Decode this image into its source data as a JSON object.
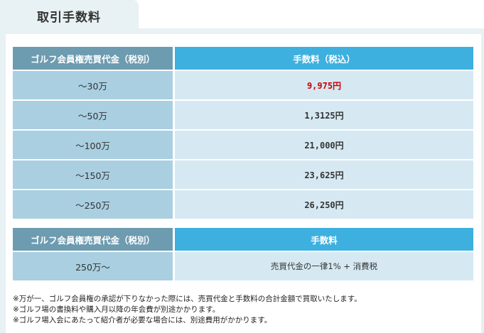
{
  "title": "取引手数料",
  "table1": {
    "headers": [
      "ゴルフ会員権売買代金（税別）",
      "手数料（税込）"
    ],
    "rows": [
      {
        "range": "～30万",
        "fee": "9,975円"
      },
      {
        "range": "～50万",
        "fee": "1,3125円"
      },
      {
        "range": "～100万",
        "fee": "21,000円"
      },
      {
        "range": "～150万",
        "fee": "23,625円"
      },
      {
        "range": "～250万",
        "fee": "26,250円"
      }
    ],
    "highlight_color": "#cc0000"
  },
  "table2": {
    "headers": [
      "ゴルフ会員権売買代金（税別）",
      "手数料"
    ],
    "rows": [
      {
        "range": "250万～",
        "fee": "売買代金の一律1% + 消費税"
      }
    ]
  },
  "notes": [
    "※万が一、ゴルフ会員権の承認が下りなかった際には、売買代金と手数料の合計金額で買取いたします。",
    "※ゴルフ場の書換料や購入月以降の年会費が別途かかります。",
    "※ゴルフ場入会にあたって紹介者が必要な場合には、別途費用がかかります。"
  ],
  "colors": {
    "header_left": "#6d9bb0",
    "header_right": "#3db0e0",
    "cell_left": "#a9cfe1",
    "cell_right": "#d6e9f3",
    "panel": "#e8f1f4"
  }
}
